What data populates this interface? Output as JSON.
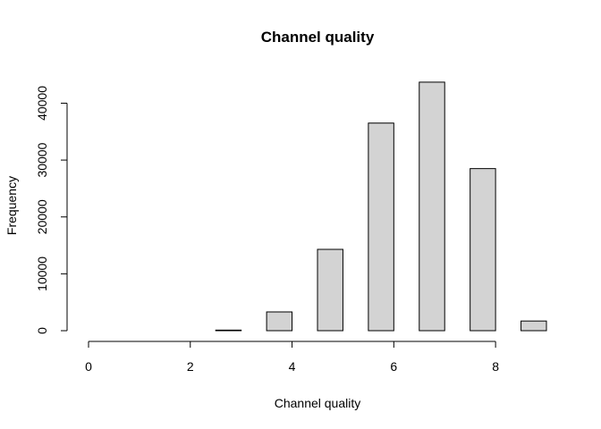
{
  "chart_data": {
    "type": "bar",
    "title": "Channel quality",
    "xlabel": "Channel quality",
    "ylabel": "Frequency",
    "xlim": [
      0,
      9
    ],
    "ylim": [
      0,
      44000
    ],
    "x_ticks": [
      0,
      2,
      4,
      6,
      8
    ],
    "y_ticks": [
      0,
      10000,
      20000,
      30000,
      40000
    ],
    "bins": [
      {
        "x0": 0.0,
        "x1": 0.5,
        "value": 0
      },
      {
        "x0": 0.5,
        "x1": 1.0,
        "value": 0
      },
      {
        "x0": 1.0,
        "x1": 1.5,
        "value": 0
      },
      {
        "x0": 1.5,
        "x1": 2.0,
        "value": 0
      },
      {
        "x0": 2.0,
        "x1": 2.5,
        "value": 0
      },
      {
        "x0": 2.5,
        "x1": 3.0,
        "value": 100
      },
      {
        "x0": 3.0,
        "x1": 3.5,
        "value": 0
      },
      {
        "x0": 3.5,
        "x1": 4.0,
        "value": 3300
      },
      {
        "x0": 4.0,
        "x1": 4.5,
        "value": 0
      },
      {
        "x0": 4.5,
        "x1": 5.0,
        "value": 14300
      },
      {
        "x0": 5.0,
        "x1": 5.5,
        "value": 0
      },
      {
        "x0": 5.5,
        "x1": 6.0,
        "value": 36500
      },
      {
        "x0": 6.0,
        "x1": 6.5,
        "value": 0
      },
      {
        "x0": 6.5,
        "x1": 7.0,
        "value": 43700
      },
      {
        "x0": 7.0,
        "x1": 7.5,
        "value": 0
      },
      {
        "x0": 7.5,
        "x1": 8.0,
        "value": 28500
      },
      {
        "x0": 8.0,
        "x1": 8.5,
        "value": 0
      },
      {
        "x0": 8.5,
        "x1": 9.0,
        "value": 1700
      }
    ],
    "colors": {
      "bar_fill": "#d3d3d3",
      "bar_stroke": "#000000"
    },
    "grid": false
  }
}
